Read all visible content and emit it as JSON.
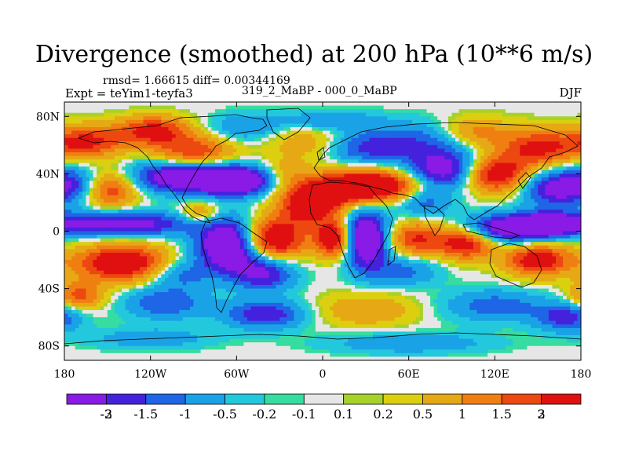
{
  "chart_data": {
    "type": "heatmap",
    "title": "Divergence (smoothed) at 200 hPa (10**6 m/s)",
    "stats_text": "rmsd= 1.66615 diff= 0.00344169",
    "experiment_text": "Expt = teYim1-teyfa3",
    "difference_text": "319_2_MaBP - 000_0_MaBP",
    "season": "DJF",
    "x_range": [
      -180,
      180
    ],
    "y_range": [
      -90,
      90
    ],
    "x_ticks": [
      {
        "value": -180,
        "label": "180"
      },
      {
        "value": -120,
        "label": "120W"
      },
      {
        "value": -60,
        "label": "60W"
      },
      {
        "value": 0,
        "label": "0"
      },
      {
        "value": 60,
        "label": "60E"
      },
      {
        "value": 120,
        "label": "120E"
      },
      {
        "value": 180,
        "label": "180"
      }
    ],
    "y_ticks": [
      {
        "value": 80,
        "label": "80N"
      },
      {
        "value": 40,
        "label": "40N"
      },
      {
        "value": 0,
        "label": "0"
      },
      {
        "value": -40,
        "label": "40S"
      },
      {
        "value": -80,
        "label": "80S"
      }
    ],
    "colorbar": {
      "colors": [
        "#8a1ae6",
        "#4422dd",
        "#1e66e6",
        "#1aa2e6",
        "#23c8dc",
        "#36dca0",
        "#e6e6e6",
        "#a6d32a",
        "#dccf10",
        "#e6a814",
        "#f07f12",
        "#ec4810",
        "#e01010"
      ],
      "boundaries": [
        "-3",
        "-2",
        "-1.5",
        "-1",
        "-0.5",
        "-0.2",
        "-0.1",
        "0.1",
        "0.2",
        "0.5",
        "1",
        "1.5",
        "2",
        "3"
      ]
    },
    "features": [
      {
        "lon": -165,
        "lat": 62,
        "amp": 2.2,
        "slon": 18,
        "slat": 8
      },
      {
        "lon": -118,
        "lat": 70,
        "amp": 2.3,
        "slon": 18,
        "slat": 7
      },
      {
        "lon": -90,
        "lat": 55,
        "amp": 2.0,
        "slon": 20,
        "slat": 8
      },
      {
        "lon": -55,
        "lat": 72,
        "amp": -1.0,
        "slon": 18,
        "slat": 7
      },
      {
        "lon": -10,
        "lat": 62,
        "amp": 0.9,
        "slon": 20,
        "slat": 8
      },
      {
        "lon": 5,
        "lat": 77,
        "amp": -1.0,
        "slon": 25,
        "slat": 5
      },
      {
        "lon": 30,
        "lat": 58,
        "amp": -1.5,
        "slon": 20,
        "slat": 8
      },
      {
        "lon": 75,
        "lat": 62,
        "amp": -1.4,
        "slon": 28,
        "slat": 10
      },
      {
        "lon": 105,
        "lat": 68,
        "amp": 1.6,
        "slon": 18,
        "slat": 8
      },
      {
        "lon": 150,
        "lat": 58,
        "amp": 2.2,
        "slon": 18,
        "slat": 9
      },
      {
        "lon": -172,
        "lat": 32,
        "amp": -2.0,
        "slon": 15,
        "slat": 9
      },
      {
        "lon": -150,
        "lat": 30,
        "amp": 2.4,
        "slon": 15,
        "slat": 9
      },
      {
        "lon": -100,
        "lat": 38,
        "amp": -2.8,
        "slon": 26,
        "slat": 8
      },
      {
        "lon": -60,
        "lat": 35,
        "amp": -3.2,
        "slon": 18,
        "slat": 7
      },
      {
        "lon": -25,
        "lat": 40,
        "amp": 0.9,
        "slon": 12,
        "slat": 8
      },
      {
        "lon": -10,
        "lat": 18,
        "amp": 2.6,
        "slon": 15,
        "slat": 9
      },
      {
        "lon": 15,
        "lat": 30,
        "amp": 2.8,
        "slon": 20,
        "slat": 8
      },
      {
        "lon": 45,
        "lat": 32,
        "amp": 2.2,
        "slon": 20,
        "slat": 8
      },
      {
        "lon": 85,
        "lat": 42,
        "amp": -2.6,
        "slon": 18,
        "slat": 9
      },
      {
        "lon": 120,
        "lat": 40,
        "amp": 2.8,
        "slon": 17,
        "slat": 9
      },
      {
        "lon": 160,
        "lat": 30,
        "amp": -2.2,
        "slon": 15,
        "slat": 9
      },
      {
        "lon": 70,
        "lat": 20,
        "amp": -1.3,
        "slon": 14,
        "slat": 7
      },
      {
        "lon": -140,
        "lat": 5,
        "amp": -2.5,
        "slon": 35,
        "slat": 6
      },
      {
        "lon": -85,
        "lat": 12,
        "amp": 1.3,
        "slon": 10,
        "slat": 6
      },
      {
        "lon": -65,
        "lat": -10,
        "amp": -3.5,
        "slon": 16,
        "slat": 13
      },
      {
        "lon": -35,
        "lat": -5,
        "amp": 3.2,
        "slon": 16,
        "slat": 10
      },
      {
        "lon": 8,
        "lat": -5,
        "amp": 3.0,
        "slon": 9,
        "slat": 9
      },
      {
        "lon": 30,
        "lat": -5,
        "amp": -3.4,
        "slon": 11,
        "slat": 14
      },
      {
        "lon": 65,
        "lat": -5,
        "amp": 2.0,
        "slon": 14,
        "slat": 8
      },
      {
        "lon": 100,
        "lat": -8,
        "amp": 2.6,
        "slon": 14,
        "slat": 8
      },
      {
        "lon": 130,
        "lat": 2,
        "amp": -3.0,
        "slon": 22,
        "slat": 7
      },
      {
        "lon": 160,
        "lat": 5,
        "amp": -2.0,
        "slon": 15,
        "slat": 6
      },
      {
        "lon": 150,
        "lat": -20,
        "amp": 2.6,
        "slon": 16,
        "slat": 8
      },
      {
        "lon": -140,
        "lat": -22,
        "amp": 3.0,
        "slon": 22,
        "slat": 9
      },
      {
        "lon": -100,
        "lat": -30,
        "amp": -1.2,
        "slon": 15,
        "slat": 7
      },
      {
        "lon": -40,
        "lat": -30,
        "amp": -2.0,
        "slon": 15,
        "slat": 8
      },
      {
        "lon": 55,
        "lat": -28,
        "amp": -1.2,
        "slon": 18,
        "slat": 7
      },
      {
        "lon": -170,
        "lat": -45,
        "amp": 1.7,
        "slon": 12,
        "slat": 7
      },
      {
        "lon": -110,
        "lat": -50,
        "amp": -1.5,
        "slon": 20,
        "slat": 8
      },
      {
        "lon": -40,
        "lat": -58,
        "amp": -2.0,
        "slon": 20,
        "slat": 7
      },
      {
        "lon": 30,
        "lat": -55,
        "amp": 1.0,
        "slon": 25,
        "slat": 8
      },
      {
        "lon": 120,
        "lat": -52,
        "amp": -1.3,
        "slon": 25,
        "slat": 8
      },
      {
        "lon": 170,
        "lat": -60,
        "amp": -1.8,
        "slon": 15,
        "slat": 7
      },
      {
        "lon": -120,
        "lat": -75,
        "amp": -0.9,
        "slon": 30,
        "slat": 5
      },
      {
        "lon": 60,
        "lat": -78,
        "amp": -1.0,
        "slon": 40,
        "slat": 5
      }
    ]
  }
}
